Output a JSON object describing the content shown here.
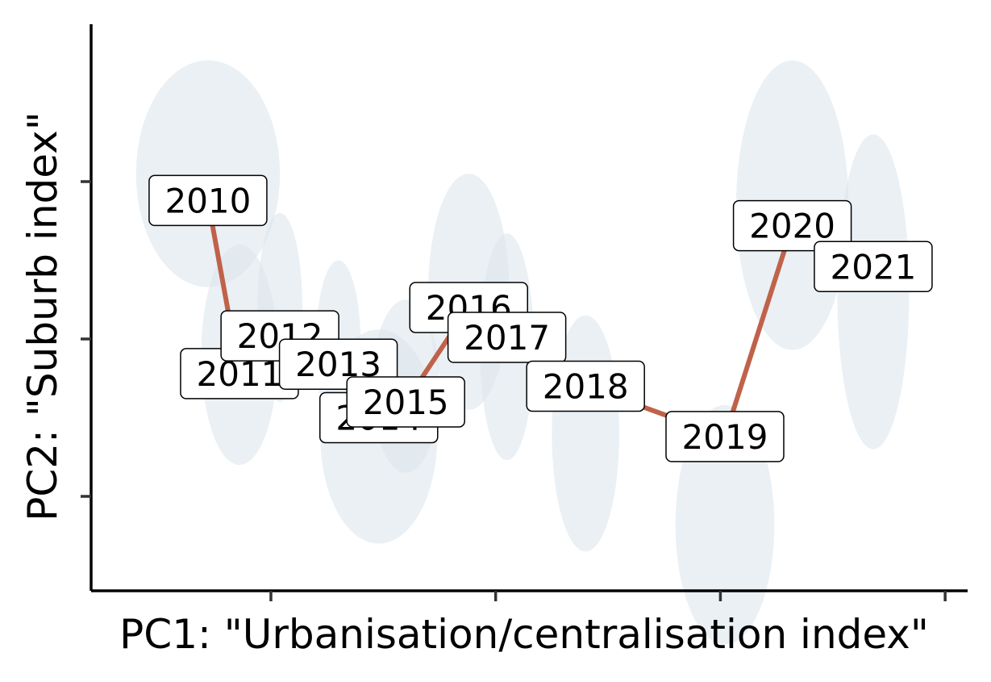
{
  "chart_data": {
    "type": "scatter",
    "title": "",
    "xlabel": "PC1: \"Urbanisation/centralisation index\"",
    "ylabel": "PC2: \"Suburb index\"",
    "xlim": [
      -0.8,
      3.1
    ],
    "ylim": [
      -1.6,
      2.0
    ],
    "x_ticks": [
      0,
      1,
      2,
      3
    ],
    "y_ticks": [
      -1,
      0,
      1
    ],
    "tick_labels_shown": false,
    "grid": false,
    "legend": "none",
    "colors": {
      "line": "#c0624a",
      "ellipse": "#dde6ee"
    },
    "series": [
      {
        "points": [
          {
            "label": "2010",
            "x": -0.28,
            "y": 0.88,
            "sd_x": 0.32,
            "sd_y": 0.72,
            "ell_y": 1.05
          },
          {
            "label": "2011",
            "x": -0.14,
            "y": -0.22,
            "sd_x": 0.17,
            "sd_y": 0.7,
            "ell_y": -0.1
          },
          {
            "label": "2012",
            "x": 0.04,
            "y": 0.02,
            "sd_x": 0.1,
            "sd_y": 0.6,
            "ell_y": 0.2
          },
          {
            "label": "2013",
            "x": 0.3,
            "y": -0.16,
            "sd_x": 0.1,
            "sd_y": 0.55,
            "ell_y": -0.05
          },
          {
            "label": "2014",
            "x": 0.48,
            "y": -0.5,
            "sd_x": 0.26,
            "sd_y": 0.68,
            "ell_y": -0.62
          },
          {
            "label": "2015",
            "x": 0.6,
            "y": -0.4,
            "sd_x": 0.15,
            "sd_y": 0.55,
            "ell_y": -0.3
          },
          {
            "label": "2016",
            "x": 0.88,
            "y": 0.2,
            "sd_x": 0.18,
            "sd_y": 0.75,
            "ell_y": 0.3
          },
          {
            "label": "2017",
            "x": 1.05,
            "y": 0.01,
            "sd_x": 0.12,
            "sd_y": 0.72,
            "ell_y": -0.05
          },
          {
            "label": "2018",
            "x": 1.4,
            "y": -0.3,
            "sd_x": 0.15,
            "sd_y": 0.75,
            "ell_y": -0.6
          },
          {
            "label": "2019",
            "x": 2.02,
            "y": -0.62,
            "sd_x": 0.22,
            "sd_y": 0.76,
            "ell_y": -1.18
          },
          {
            "label": "2020",
            "x": 2.32,
            "y": 0.72,
            "sd_x": 0.25,
            "sd_y": 0.92,
            "ell_y": 0.85
          },
          {
            "label": "2021",
            "x": 2.68,
            "y": 0.46,
            "sd_x": 0.16,
            "sd_y": 1.0,
            "ell_y": 0.3
          }
        ]
      }
    ]
  }
}
